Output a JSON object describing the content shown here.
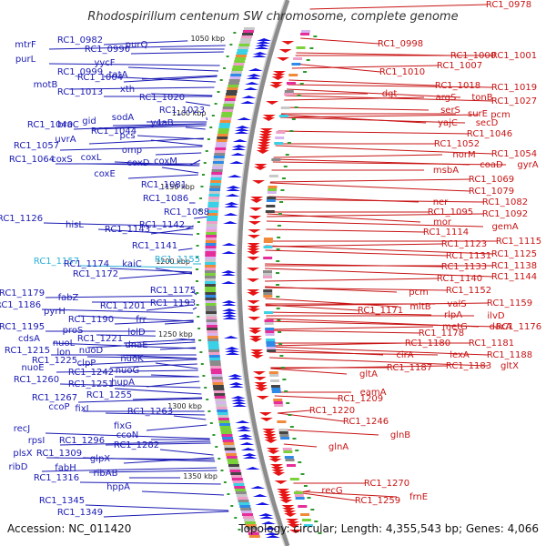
{
  "title": "Rhodospirillum centenum SW chromosome, complete genome",
  "footer": {
    "accession": "Accession: NC_011420",
    "summary": "Topology: circular; Length: 4,355,543 bp; Genes: 4,066"
  },
  "colors": {
    "left_label": "#1a1ab4",
    "right_label": "#c81414",
    "highlight_label": "#2ab0d8",
    "left_arrow": "#1414e6",
    "right_arrow": "#e61414",
    "backbone": "#8c8c8c"
  },
  "kbp_markers": [
    "1050 kbp",
    "1100 kbp",
    "1150 kbp",
    "1200 kbp",
    "1250 kbp",
    "1300 kbp",
    "1350 kbp"
  ],
  "left_genes": [
    "RC1_0982",
    "mtrF",
    "RC1_0990",
    "purQ",
    "purL",
    "yycF",
    "RC1_0999",
    "RC1_1004",
    "tatA",
    "motB",
    "RC1_1013",
    "xth",
    "RC1_1020",
    "RC1_1023",
    "RC1_1040",
    "braC",
    "gid",
    "sodA",
    "y4aB",
    "RC1_1044",
    "pcs",
    "uvrA",
    "RC1_1057",
    "omp",
    "RC1_1064",
    "coxS",
    "coxL",
    "coxD",
    "coxM",
    "coxE",
    "RC1_1081",
    "RC1_1086",
    "RC1_1088",
    "RC1_1126",
    "hisL",
    "RC1_1143",
    "RC1_1142",
    "RC1_1141",
    "RC1_1155",
    "RC1_1157",
    "RC1_1174",
    "kaiC",
    "RC1_1172",
    "RC1_1175",
    "RC1_1179",
    "fabZ",
    "RC1_1193",
    "RC1_1186",
    "pyrH",
    "RC1_1201",
    "RC1_1190",
    "frr",
    "RC1_1195",
    "proS",
    "lolD",
    "cdsA",
    "nuoL",
    "RC1_1221",
    "dnaE",
    "RC1_1215",
    "lon",
    "nuoD",
    "nuoK",
    "RC1_1225",
    "clpP",
    "nuoE",
    "RC1_1242",
    "nuoG",
    "RC1_1260",
    "RC1_1251",
    "hupA",
    "RC1_1267",
    "RC1_1255",
    "ccoP",
    "fixI",
    "RC1_1263",
    "recJ",
    "fixG",
    "rpsI",
    "RC1_1296",
    "ccoN",
    "plsX",
    "RC1_1309",
    "RC1_1282",
    "glpX",
    "ribD",
    "fabH",
    "ribAB",
    "RC1_1316",
    "hppA",
    "RC1_1345",
    "RC1_1349"
  ],
  "right_genes": [
    "RC1_0978",
    "RC1_0998",
    "RC1_1000",
    "RC1_1001",
    "RC1_1007",
    "RC1_1010",
    "RC1_1018",
    "RC1_1019",
    "dgt",
    "argS",
    "tonB",
    "RC1_1027",
    "serS",
    "surE",
    "pcm",
    "yajC",
    "secD",
    "RC1_1046",
    "RC1_1052",
    "norM",
    "RC1_1054",
    "coaD",
    "gyrA",
    "msbA",
    "RC1_1069",
    "RC1_1079",
    "ner",
    "RC1_1082",
    "RC1_1095",
    "RC1_1092",
    "mor",
    "gemA",
    "RC1_1114",
    "RC1_1115",
    "RC1_1123",
    "RC1_1125",
    "RC1_1131",
    "RC1_1133",
    "RC1_1138",
    "RC1_1140",
    "RC1_1144",
    "pcm",
    "RC1_1152",
    "valS",
    "RC1_1159",
    "mltB",
    "RC1_1171",
    "rlpA",
    "ilvD",
    "metG",
    "dacA",
    "RC1_1176",
    "RC1_1178",
    "RC1_1181",
    "RC1_1180",
    "RC1_1188",
    "cirA",
    "lexA",
    "RC1_1187",
    "RC1_1183",
    "gltX",
    "gltA",
    "RC1_1209",
    "eamA",
    "RC1_1220",
    "RC1_1246",
    "glnB",
    "glnA",
    "RC1_1270",
    "recG",
    "RC1_1259",
    "frnE"
  ]
}
